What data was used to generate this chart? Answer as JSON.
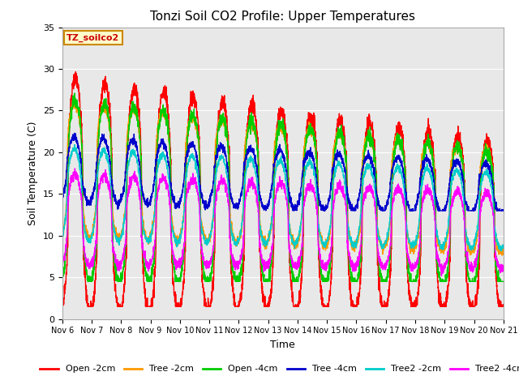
{
  "title": "Tonzi Soil CO2 Profile: Upper Temperatures",
  "xlabel": "Time",
  "ylabel": "Soil Temperature (C)",
  "ylim": [
    0,
    35
  ],
  "series_colors": [
    "#ff0000",
    "#ff9900",
    "#00cc00",
    "#0000cc",
    "#00cccc",
    "#ff00ff"
  ],
  "series_labels": [
    "Open -2cm",
    "Tree -2cm",
    "Open -4cm",
    "Tree -4cm",
    "Tree2 -2cm",
    "Tree2 -4cm"
  ],
  "plot_bg_color": "#e8e8e8",
  "annotation_text": "TZ_soilco2",
  "annotation_color": "#cc0000",
  "annotation_bg": "#ffffcc",
  "annotation_border": "#cc8800",
  "figsize": [
    6.4,
    4.8
  ],
  "dpi": 100
}
